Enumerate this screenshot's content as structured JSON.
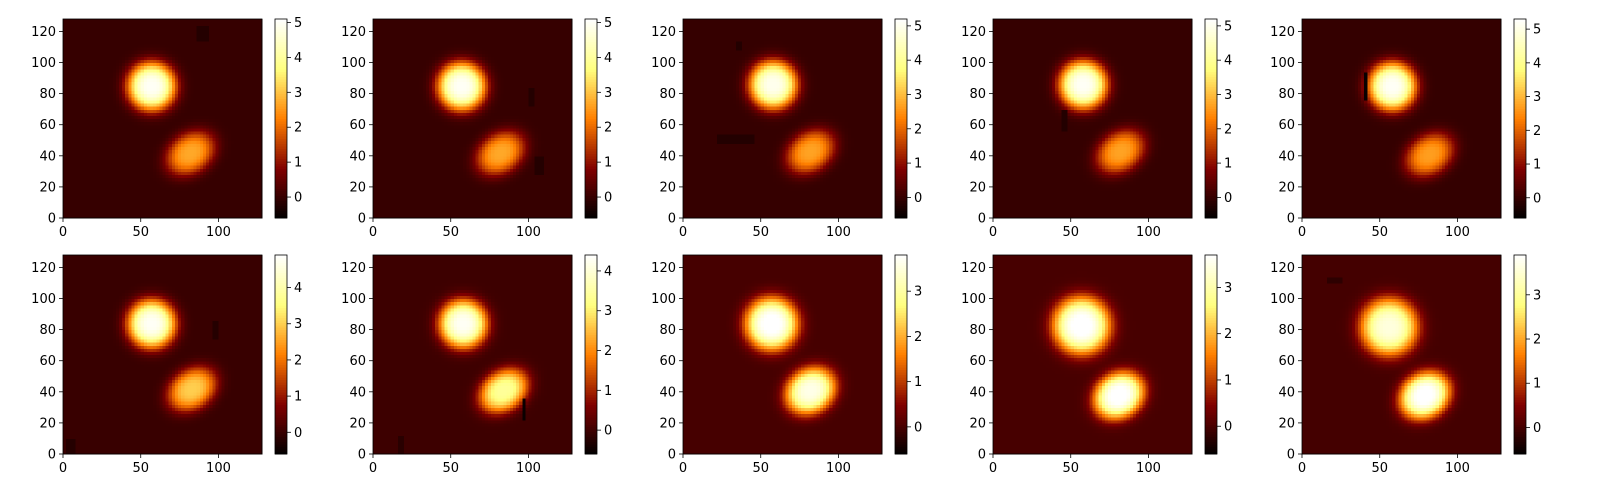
{
  "figure": {
    "background": "#ffffff",
    "colormap": "afmhot"
  },
  "chart_data": [
    {
      "type": "heatmap",
      "title": "",
      "xlabel": "",
      "ylabel": "",
      "xlim": [
        0,
        128
      ],
      "ylim": [
        0,
        128
      ],
      "xticks": [
        "0",
        "50",
        "100"
      ],
      "yticks": [
        "0",
        "20",
        "40",
        "60",
        "80",
        "100",
        "120"
      ],
      "color_range": [
        -0.6,
        5.1
      ],
      "colorbar_ticks": [
        "0",
        "1",
        "2",
        "3",
        "4",
        "5"
      ],
      "blobs": [
        {
          "cx": 57,
          "cy": 85,
          "sx": 11,
          "sy": 11,
          "rot": 0,
          "amp": 5.0
        },
        {
          "cx": 82,
          "cy": 42,
          "sx": 12,
          "sy": 9,
          "rot": 35,
          "amp": 2.7
        }
      ],
      "masked_regions": [
        {
          "x0": 86,
          "x1": 94,
          "y0": 114,
          "y1": 124,
          "value": -0.2
        }
      ]
    },
    {
      "type": "heatmap",
      "title": "",
      "xlabel": "",
      "ylabel": "",
      "xlim": [
        0,
        128
      ],
      "ylim": [
        0,
        128
      ],
      "xticks": [
        "0",
        "50",
        "100"
      ],
      "yticks": [
        "0",
        "20",
        "40",
        "60",
        "80",
        "100",
        "120"
      ],
      "color_range": [
        -0.6,
        5.1
      ],
      "colorbar_ticks": [
        "0",
        "1",
        "2",
        "3",
        "4",
        "5"
      ],
      "blobs": [
        {
          "cx": 57,
          "cy": 85,
          "sx": 11,
          "sy": 11,
          "rot": 0,
          "amp": 5.0
        },
        {
          "cx": 82,
          "cy": 42,
          "sx": 12,
          "sy": 9,
          "rot": 35,
          "amp": 2.7
        }
      ],
      "masked_regions": [
        {
          "x0": 100,
          "x1": 104,
          "y0": 73,
          "y1": 84,
          "value": -0.2
        },
        {
          "x0": 105,
          "x1": 109,
          "y0": 29,
          "y1": 39,
          "value": -0.2
        }
      ]
    },
    {
      "type": "heatmap",
      "title": "",
      "xlabel": "",
      "ylabel": "",
      "xlim": [
        0,
        128
      ],
      "ylim": [
        0,
        128
      ],
      "xticks": [
        "0",
        "50",
        "100"
      ],
      "yticks": [
        "0",
        "20",
        "40",
        "60",
        "80",
        "100",
        "120"
      ],
      "color_range": [
        -0.6,
        5.2
      ],
      "colorbar_ticks": [
        "0",
        "1",
        "2",
        "3",
        "4",
        "5"
      ],
      "blobs": [
        {
          "cx": 58,
          "cy": 86,
          "sx": 11,
          "sy": 11,
          "rot": 0,
          "amp": 5.0
        },
        {
          "cx": 82,
          "cy": 43,
          "sx": 12,
          "sy": 9,
          "rot": 35,
          "amp": 2.7
        }
      ],
      "masked_regions": [
        {
          "x0": 22,
          "x1": 46,
          "y0": 48,
          "y1": 53,
          "value": -0.2
        },
        {
          "x0": 35,
          "x1": 37,
          "y0": 108,
          "y1": 114,
          "value": -0.2
        }
      ]
    },
    {
      "type": "heatmap",
      "title": "",
      "xlabel": "",
      "ylabel": "",
      "xlim": [
        0,
        128
      ],
      "ylim": [
        0,
        128
      ],
      "xticks": [
        "0",
        "50",
        "100"
      ],
      "yticks": [
        "0",
        "20",
        "40",
        "60",
        "80",
        "100",
        "120"
      ],
      "color_range": [
        -0.6,
        5.2
      ],
      "colorbar_ticks": [
        "0",
        "1",
        "2",
        "3",
        "4",
        "5"
      ],
      "blobs": [
        {
          "cx": 58,
          "cy": 86,
          "sx": 11,
          "sy": 11,
          "rot": 0,
          "amp": 5.1
        },
        {
          "cx": 82,
          "cy": 43,
          "sx": 12,
          "sy": 9,
          "rot": 35,
          "amp": 2.7
        }
      ],
      "masked_regions": [
        {
          "x0": 45,
          "x1": 47,
          "y0": 56,
          "y1": 70,
          "value": -0.2
        }
      ]
    },
    {
      "type": "heatmap",
      "title": "",
      "xlabel": "",
      "ylabel": "",
      "xlim": [
        0,
        128
      ],
      "ylim": [
        0,
        128
      ],
      "xticks": [
        "0",
        "50",
        "100"
      ],
      "yticks": [
        "0",
        "20",
        "40",
        "60",
        "80",
        "100",
        "120"
      ],
      "color_range": [
        -0.6,
        5.3
      ],
      "colorbar_ticks": [
        "0",
        "1",
        "2",
        "3",
        "4",
        "5"
      ],
      "blobs": [
        {
          "cx": 58,
          "cy": 85,
          "sx": 11,
          "sy": 11,
          "rot": 0,
          "amp": 5.2
        },
        {
          "cx": 82,
          "cy": 41,
          "sx": 12,
          "sy": 9,
          "rot": 35,
          "amp": 2.7
        }
      ],
      "masked_regions": [
        {
          "x0": 40,
          "x1": 42,
          "y0": 76,
          "y1": 94,
          "value": -0.5
        }
      ]
    },
    {
      "type": "heatmap",
      "title": "",
      "xlabel": "",
      "ylabel": "",
      "xlim": [
        0,
        128
      ],
      "ylim": [
        0,
        128
      ],
      "xticks": [
        "0",
        "50",
        "100"
      ],
      "yticks": [
        "0",
        "20",
        "40",
        "60",
        "80",
        "100",
        "120"
      ],
      "color_range": [
        -0.6,
        4.9
      ],
      "colorbar_ticks": [
        "0",
        "1",
        "2",
        "3",
        "4"
      ],
      "blobs": [
        {
          "cx": 57,
          "cy": 84,
          "sx": 11,
          "sy": 11,
          "rot": 0,
          "amp": 4.8
        },
        {
          "cx": 83,
          "cy": 42,
          "sx": 12,
          "sy": 9,
          "rot": 35,
          "amp": 3.0
        }
      ],
      "masked_regions": [
        {
          "x0": 96,
          "x1": 99,
          "y0": 74,
          "y1": 86,
          "value": -0.2
        },
        {
          "x0": 2,
          "x1": 7,
          "y0": 1,
          "y1": 10,
          "value": -0.2
        }
      ]
    },
    {
      "type": "heatmap",
      "title": "",
      "xlabel": "",
      "ylabel": "",
      "xlim": [
        0,
        128
      ],
      "ylim": [
        0,
        128
      ],
      "xticks": [
        "0",
        "50",
        "100"
      ],
      "yticks": [
        "0",
        "20",
        "40",
        "60",
        "80",
        "100",
        "120"
      ],
      "color_range": [
        -0.6,
        4.4
      ],
      "colorbar_ticks": [
        "0",
        "1",
        "2",
        "3",
        "4"
      ],
      "blobs": [
        {
          "cx": 58,
          "cy": 84,
          "sx": 11,
          "sy": 11,
          "rot": 0,
          "amp": 4.3
        },
        {
          "cx": 84,
          "cy": 41,
          "sx": 12,
          "sy": 9,
          "rot": 35,
          "amp": 3.4
        }
      ],
      "masked_regions": [
        {
          "x0": 96,
          "x1": 98,
          "y0": 22,
          "y1": 35,
          "value": -0.5
        },
        {
          "x0": 17,
          "x1": 20,
          "y0": 0,
          "y1": 12,
          "value": -0.2
        }
      ]
    },
    {
      "type": "heatmap",
      "title": "",
      "xlabel": "",
      "ylabel": "",
      "xlim": [
        0,
        128
      ],
      "ylim": [
        0,
        128
      ],
      "xticks": [
        "0",
        "50",
        "100"
      ],
      "yticks": [
        "0",
        "20",
        "40",
        "60",
        "80",
        "100",
        "120"
      ],
      "color_range": [
        -0.6,
        3.8
      ],
      "colorbar_ticks": [
        "0",
        "1",
        "2",
        "3"
      ],
      "blobs": [
        {
          "cx": 57,
          "cy": 84,
          "sx": 12,
          "sy": 12,
          "rot": 0,
          "amp": 3.9
        },
        {
          "cx": 82,
          "cy": 41,
          "sx": 12,
          "sy": 10,
          "rot": 35,
          "amp": 3.6
        }
      ],
      "masked_regions": []
    },
    {
      "type": "heatmap",
      "title": "",
      "xlabel": "",
      "ylabel": "",
      "xlim": [
        0,
        128
      ],
      "ylim": [
        0,
        128
      ],
      "xticks": [
        "0",
        "50",
        "100"
      ],
      "yticks": [
        "0",
        "20",
        "40",
        "60",
        "80",
        "100",
        "120"
      ],
      "color_range": [
        -0.6,
        3.7
      ],
      "colorbar_ticks": [
        "0",
        "1",
        "2",
        "3"
      ],
      "blobs": [
        {
          "cx": 57,
          "cy": 83,
          "sx": 13,
          "sy": 13,
          "rot": 0,
          "amp": 3.8
        },
        {
          "cx": 81,
          "cy": 38,
          "sx": 12,
          "sy": 10,
          "rot": 35,
          "amp": 3.8
        }
      ],
      "masked_regions": [
        {
          "x0": 100,
          "x1": 106,
          "y0": 62,
          "y1": 78,
          "value": 0.0
        }
      ]
    },
    {
      "type": "heatmap",
      "title": "",
      "xlabel": "",
      "ylabel": "",
      "xlim": [
        0,
        128
      ],
      "ylim": [
        0,
        128
      ],
      "xticks": [
        "0",
        "50",
        "100"
      ],
      "yticks": [
        "0",
        "20",
        "40",
        "60",
        "80",
        "100",
        "120"
      ],
      "color_range": [
        -0.6,
        3.9
      ],
      "colorbar_ticks": [
        "0",
        "1",
        "2",
        "3"
      ],
      "blobs": [
        {
          "cx": 56,
          "cy": 82,
          "sx": 13,
          "sy": 13,
          "rot": 0,
          "amp": 3.6
        },
        {
          "cx": 79,
          "cy": 38,
          "sx": 12,
          "sy": 10,
          "rot": 35,
          "amp": 4.0
        }
      ],
      "masked_regions": [
        {
          "x0": 16,
          "x1": 25,
          "y0": 111,
          "y1": 113,
          "value": -0.2
        }
      ]
    }
  ]
}
